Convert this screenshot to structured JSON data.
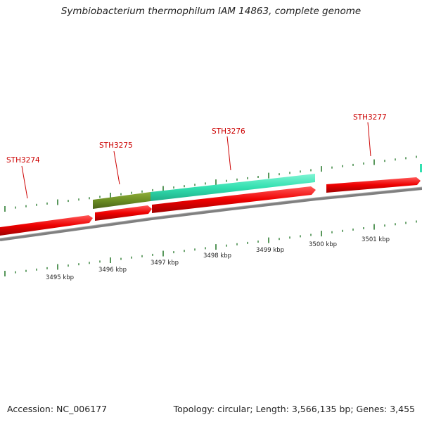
{
  "title": "Symbiobacterium thermophilum IAM 14863, complete genome",
  "accession": "Accession: NC_006177",
  "summary": "Topology: circular; Length: 3,566,135 bp; Genes: 3,455",
  "genes": [
    {
      "label": "STH3274",
      "color": "#ee0000"
    },
    {
      "label": "STH3275",
      "color": "#ee0000"
    },
    {
      "label": "STH3276",
      "color": "#ee0000"
    },
    {
      "label": "STH3277",
      "color": "#ee0000"
    }
  ],
  "features": [
    {
      "kind": "olive-segment",
      "color": "#6b8e23"
    },
    {
      "kind": "cyan-segment",
      "color": "#33e0b0"
    }
  ],
  "scale_labels": [
    "3495 kbp",
    "3496 kbp",
    "3497 kbp",
    "3498 kbp",
    "3499 kbp",
    "3500 kbp",
    "3501 kbp"
  ],
  "colors": {
    "gene": "#ee0000",
    "gene_label": "#cc0000",
    "tick": "#2e7d32",
    "backbone": "#808080"
  }
}
